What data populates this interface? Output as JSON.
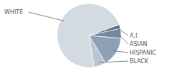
{
  "chart_data": {
    "type": "pie",
    "categories": [
      "A.I.",
      "ASIAN",
      "HISPANIC",
      "BLACK",
      "WHITE"
    ],
    "values": [
      2,
      5,
      15,
      6,
      72
    ],
    "colors": [
      "#5b6f84",
      "#7487a0",
      "#8ea0b4",
      "#b9c5d2",
      "#d4dae2"
    ]
  }
}
